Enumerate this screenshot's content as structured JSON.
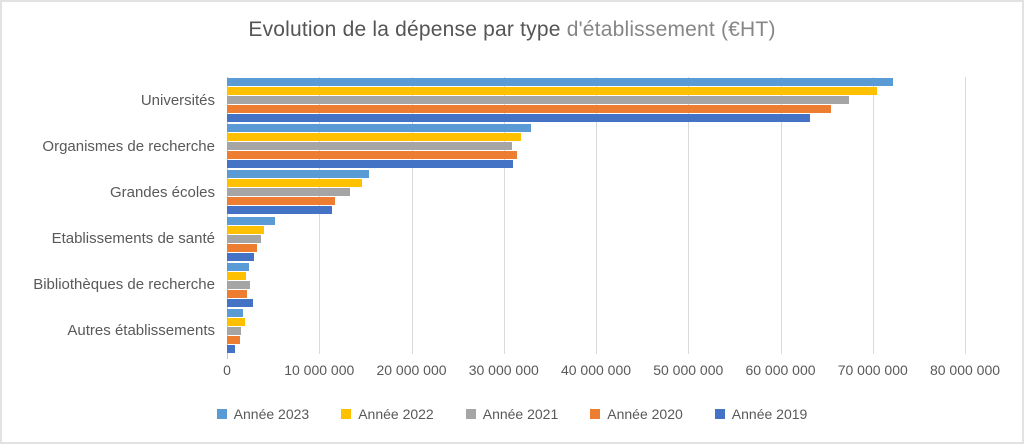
{
  "chart_data": {
    "type": "bar",
    "orientation": "horizontal",
    "title": "Evolution de la dépense par type d'établissement (€HT)",
    "title_parts": [
      "Evolution de la dépense par type ",
      "d'établissement (€HT)"
    ],
    "categories": [
      "Universités",
      "Organismes de recherche",
      "Grandes écoles",
      "Etablissements de santé",
      "Bibliothèques de recherche",
      "Autres établissements"
    ],
    "series": [
      {
        "name": "Année 2023",
        "color": "#5B9BD5",
        "values": [
          72200000,
          33000000,
          15400000,
          5200000,
          2400000,
          1700000
        ]
      },
      {
        "name": "Année 2022",
        "color": "#FFC000",
        "values": [
          70500000,
          31900000,
          14600000,
          4000000,
          2100000,
          1900000
        ]
      },
      {
        "name": "Année 2021",
        "color": "#A5A5A5",
        "values": [
          67400000,
          30900000,
          13300000,
          3700000,
          2500000,
          1500000
        ]
      },
      {
        "name": "Année 2020",
        "color": "#ED7D31",
        "values": [
          65500000,
          31400000,
          11700000,
          3300000,
          2200000,
          1400000
        ]
      },
      {
        "name": "Année 2019",
        "color": "#4472C4",
        "values": [
          63200000,
          31000000,
          11400000,
          2900000,
          2800000,
          900000
        ]
      }
    ],
    "xlim": [
      0,
      80000000
    ],
    "x_tick_values": [
      0,
      10000000,
      20000000,
      30000000,
      40000000,
      50000000,
      60000000,
      70000000,
      80000000
    ],
    "x_tick_labels": [
      "0",
      "10 000 000",
      "20 000 000",
      "30 000 000",
      "40 000 000",
      "50 000 000",
      "60 000 000",
      "70 000 000",
      "80 000 000"
    ],
    "grid": true,
    "legend_position": "bottom",
    "colors": {
      "text": "#595959",
      "gridline": "#D9D9D9",
      "zero_line": "#C6C6C6",
      "frame_border": "#E2E2E2",
      "title_primary": "#555555",
      "title_secondary": "#868686"
    }
  }
}
